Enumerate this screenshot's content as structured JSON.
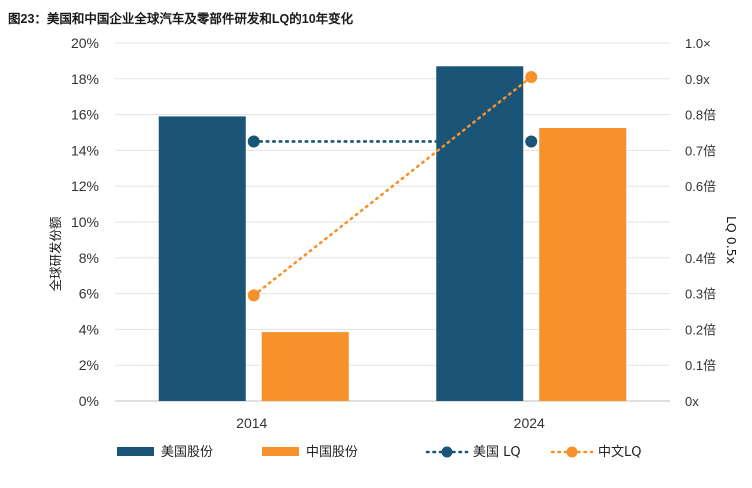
{
  "chart_data": {
    "type": "bar",
    "title": "图23：美国和中国企业全球汽车及零部件研发和LQ的10年变化",
    "categories": [
      "2014",
      "2024"
    ],
    "ylabel": "全球研发份额",
    "y2label": "LQ 0.5x",
    "ylim": [
      0,
      20
    ],
    "y2lim": [
      0,
      1.0
    ],
    "yticks": [
      "0%",
      "2%",
      "4%",
      "6%",
      "8%",
      "10%",
      "12%",
      "14%",
      "16%",
      "18%",
      "20%"
    ],
    "y2ticks": [
      {
        "value": 0.0,
        "label": "0x"
      },
      {
        "value": 0.1,
        "label": "0.1倍"
      },
      {
        "value": 0.2,
        "label": "0.2倍"
      },
      {
        "value": 0.3,
        "label": "0.3倍"
      },
      {
        "value": 0.4,
        "label": "0.4倍"
      },
      {
        "value": 0.6,
        "label": "0.6倍"
      },
      {
        "value": 0.7,
        "label": "0.7倍"
      },
      {
        "value": 0.8,
        "label": "0.8倍"
      },
      {
        "value": 0.9,
        "label": "0.9x"
      },
      {
        "value": 1.0,
        "label": "1.0×"
      }
    ],
    "grid": true,
    "legend_position": "bottom",
    "series": [
      {
        "name": "美国股份",
        "kind": "bar",
        "axis": "left",
        "color": "#1a5577",
        "values": [
          15.9,
          18.7
        ]
      },
      {
        "name": "中国股份",
        "kind": "bar",
        "axis": "left",
        "color": "#f7912c",
        "values": [
          3.85,
          15.25
        ]
      },
      {
        "name": "美国 LQ",
        "kind": "line",
        "style": "dotted",
        "axis": "right",
        "color": "#1a5577",
        "values": [
          0.725,
          0.725
        ]
      },
      {
        "name": "中文LQ",
        "kind": "line",
        "style": "dotted",
        "axis": "right",
        "color": "#f7912c",
        "values": [
          0.295,
          0.905
        ]
      }
    ]
  }
}
